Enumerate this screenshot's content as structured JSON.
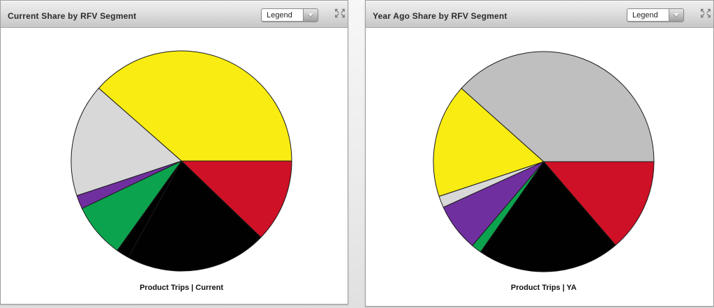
{
  "page": {
    "background_color": "#ececec",
    "panel_border_color": "#9e9e9e"
  },
  "panels": [
    {
      "title": "Current Share by RFV Segment",
      "legend_dropdown": {
        "label": "Legend"
      },
      "footer_label": "Product Trips | Current"
    },
    {
      "title": "Year Ago Share by RFV Segment",
      "legend_dropdown": {
        "label": "Legend"
      },
      "footer_label": "Product Trips | YA"
    }
  ],
  "chart_data": [
    {
      "type": "pie",
      "title": "Product Trips | Current",
      "legend": "collapsed",
      "start_angle_deg": 0,
      "direction": "clockwise",
      "radius_px": 158,
      "stroke_color": "#1a1a1a",
      "slices": [
        {
          "color_name": "red",
          "color": "#ce1126",
          "percent": 12.2
        },
        {
          "color_name": "black",
          "color": "#010101",
          "percent": 20.8
        },
        {
          "color_name": "black",
          "color": "#010101",
          "percent": 1.9
        },
        {
          "color_name": "green",
          "color": "#0ca34e",
          "percent": 8.0
        },
        {
          "color_name": "purple",
          "color": "#702f9e",
          "percent": 2.0
        },
        {
          "color_name": "light-gray",
          "color": "#d8d8d8",
          "percent": 16.6
        },
        {
          "color_name": "yellow",
          "color": "#f8ec12",
          "percent": 38.5
        }
      ]
    },
    {
      "type": "pie",
      "title": "Product Trips | YA",
      "legend": "collapsed",
      "start_angle_deg": 0,
      "direction": "clockwise",
      "radius_px": 158,
      "stroke_color": "#1a1a1a",
      "slices": [
        {
          "color_name": "red",
          "color": "#ce1126",
          "percent": 13.7
        },
        {
          "color_name": "black",
          "color": "#010101",
          "percent": 21.0
        },
        {
          "color_name": "green",
          "color": "#0ca34e",
          "percent": 1.5
        },
        {
          "color_name": "purple",
          "color": "#702f9e",
          "percent": 7.0
        },
        {
          "color_name": "light-gray",
          "color": "#d8d8d8",
          "percent": 1.7
        },
        {
          "color_name": "yellow",
          "color": "#f8ec12",
          "percent": 16.7
        },
        {
          "color_name": "silver",
          "color": "#bfbfbf",
          "percent": 38.4
        }
      ]
    }
  ]
}
